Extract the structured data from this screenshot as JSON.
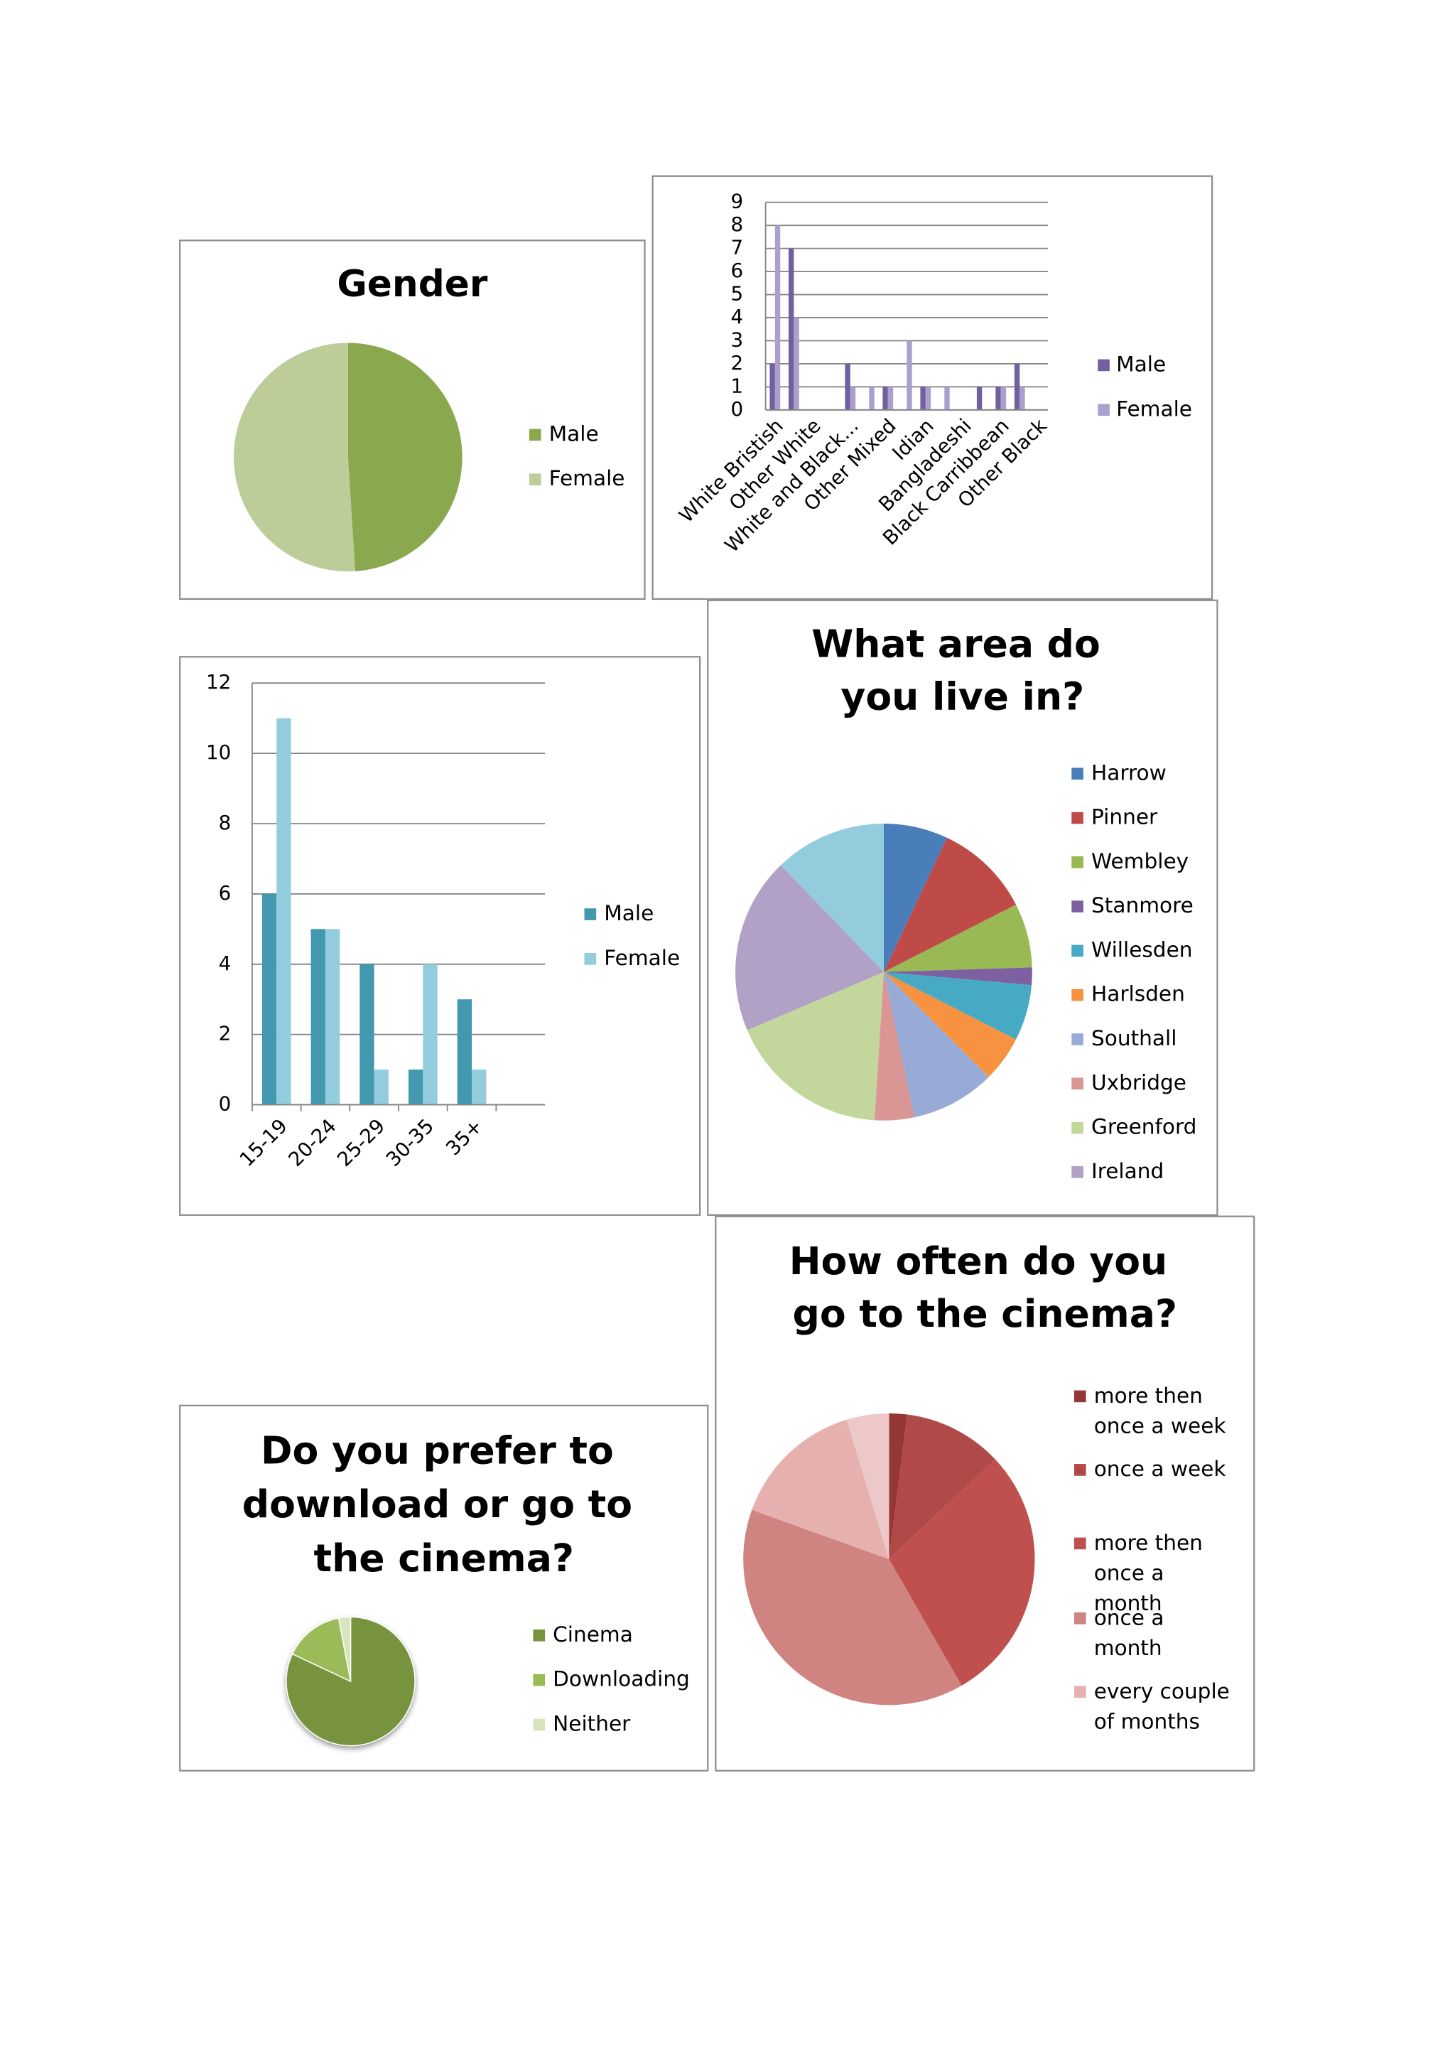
{
  "chart_data": [
    {
      "type": "pie",
      "title": "Gender",
      "categories": [
        "Male",
        "Female"
      ],
      "values": [
        49,
        51
      ],
      "colors": [
        "#8aa84e",
        "#bccd9a"
      ]
    },
    {
      "type": "bar",
      "categories": [
        "White Bristish",
        null,
        "Other White",
        null,
        "White and Black...",
        null,
        "Other Mixed",
        null,
        "Idian",
        null,
        "Bangladeshi",
        null,
        "Black Carribbean",
        null,
        "Other Black"
      ],
      "series": [
        {
          "name": "Male",
          "color": "#7160a0",
          "values": [
            2,
            7,
            0,
            0,
            2,
            0,
            1,
            0,
            1,
            0,
            0,
            1,
            1,
            2,
            0
          ]
        },
        {
          "name": "Female",
          "color": "#ab9fce",
          "values": [
            8,
            4,
            0,
            0,
            1,
            1,
            1,
            3,
            1,
            1,
            0,
            0,
            1,
            1,
            0
          ]
        }
      ],
      "ylim": [
        0,
        9
      ],
      "yticks": [
        0,
        1,
        2,
        3,
        4,
        5,
        6,
        7,
        8,
        9
      ],
      "grid": true
    },
    {
      "type": "bar",
      "categories": [
        "15-19",
        "20-24",
        "25-29",
        "30-35",
        "35+",
        null
      ],
      "series": [
        {
          "name": "Male",
          "color": "#4198af",
          "values": [
            6,
            5,
            4,
            1,
            3,
            null
          ]
        },
        {
          "name": "Female",
          "color": "#93cddd",
          "values": [
            11,
            5,
            1,
            4,
            1,
            null
          ]
        }
      ],
      "ylim": [
        0,
        12
      ],
      "yticks": [
        0,
        2,
        4,
        6,
        8,
        10,
        12
      ],
      "grid": true
    },
    {
      "type": "pie",
      "title": "What area do you live in?",
      "categories": [
        "Harrow",
        "Pinner",
        "Wembley",
        "Stanmore",
        "Willesden",
        "Harlsden",
        "Southall",
        "Uxbridge",
        "Greenford",
        "Ireland",
        null
      ],
      "values": [
        7,
        10.5,
        7,
        1.9,
        6.1,
        5,
        9.2,
        4.3,
        17.6,
        19.2,
        12.2
      ],
      "colors": [
        "#4a7ebb",
        "#be4b48",
        "#98b954",
        "#7d60a0",
        "#46aac5",
        "#f69240",
        "#97abd6",
        "#d99694",
        "#c3d69b",
        "#b2a1c7",
        "#93cddd"
      ]
    },
    {
      "type": "pie",
      "title": "How often do you go to the cinema?",
      "categories": [
        "more then once a week",
        "once a week",
        "more then once a month",
        "once a month",
        "every couple of months",
        null
      ],
      "values": [
        2,
        11,
        28.7,
        38.8,
        14.8,
        4.7
      ],
      "colors": [
        "#953735",
        "#b04a48",
        "#c0504d",
        "#d08482",
        "#e6b0ae",
        "#ecc9c8"
      ]
    },
    {
      "type": "pie",
      "title": "Do you prefer to download or go to the cinema?",
      "categories": [
        "Cinema",
        "Downloading",
        "Neither"
      ],
      "values": [
        82,
        15,
        3
      ],
      "colors": [
        "#77933c",
        "#9bbb59",
        "#d7e4bd"
      ],
      "shadow": true
    }
  ]
}
